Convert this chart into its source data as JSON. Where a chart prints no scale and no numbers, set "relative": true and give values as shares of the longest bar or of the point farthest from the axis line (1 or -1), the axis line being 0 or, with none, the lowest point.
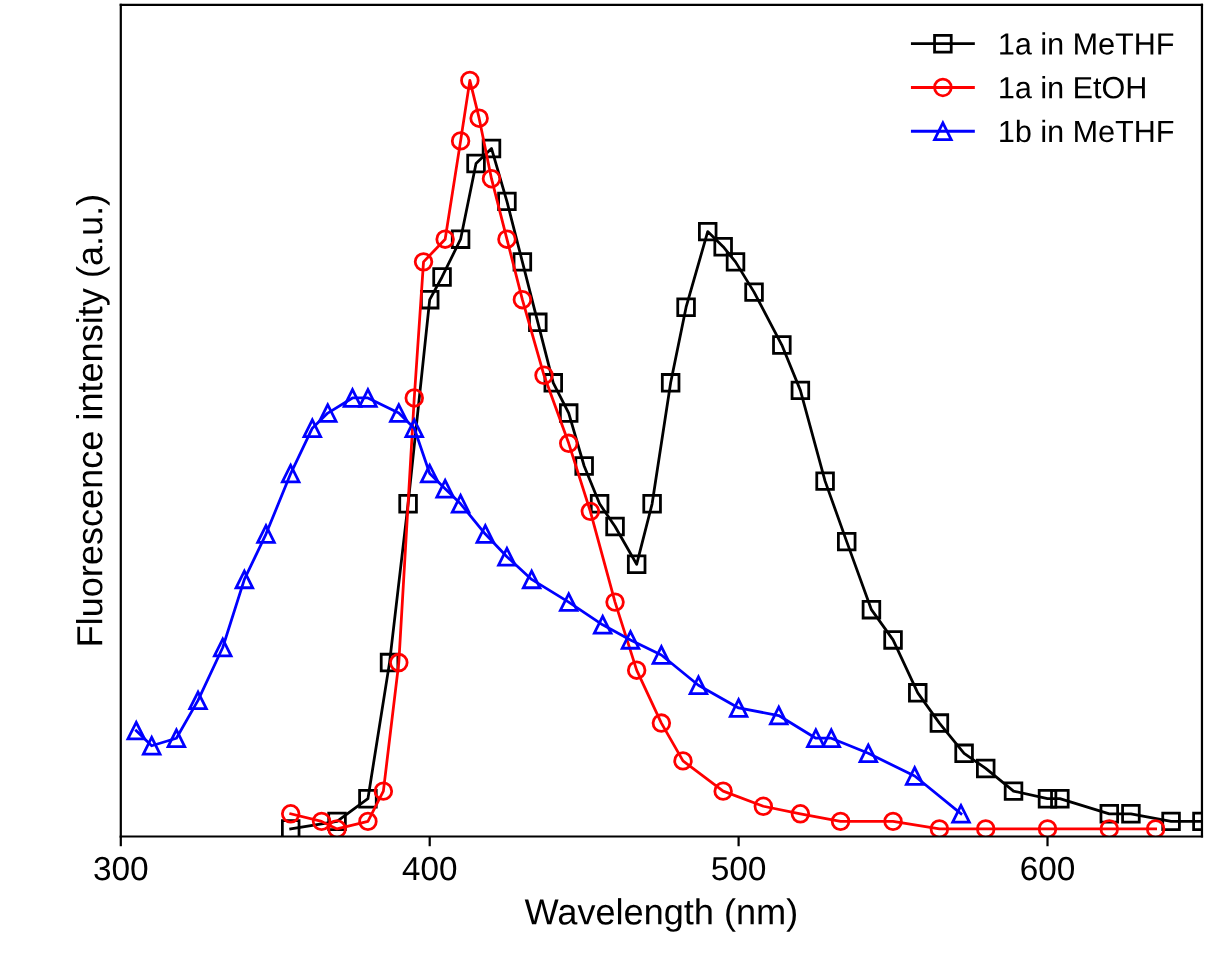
{
  "chart_data": {
    "type": "line",
    "xlabel": "Wavelength (nm)",
    "ylabel": "Fluorescence intensity (a.u.)",
    "relative": true,
    "xlim": [
      300,
      650
    ],
    "xticks": [
      300,
      400,
      500,
      600
    ],
    "legend": "top right",
    "grid": false,
    "series": [
      {
        "name": "1a in MeTHF",
        "color": "#000000",
        "marker": "square",
        "x": [
          355,
          370,
          380,
          387,
          393,
          400,
          404,
          410,
          415,
          420,
          425,
          430,
          435,
          440,
          445,
          450,
          455,
          460,
          467,
          472,
          478,
          483,
          490,
          495,
          499,
          505,
          514,
          520,
          528,
          535,
          543,
          550,
          558,
          565,
          573,
          580,
          589,
          600,
          604,
          620,
          627,
          640,
          650
        ],
        "values": [
          0.01,
          0.02,
          0.05,
          0.23,
          0.44,
          0.71,
          0.74,
          0.79,
          0.89,
          0.91,
          0.84,
          0.76,
          0.68,
          0.6,
          0.56,
          0.49,
          0.44,
          0.41,
          0.36,
          0.44,
          0.6,
          0.7,
          0.8,
          0.78,
          0.76,
          0.72,
          0.65,
          0.59,
          0.47,
          0.39,
          0.3,
          0.26,
          0.19,
          0.15,
          0.11,
          0.09,
          0.06,
          0.05,
          0.05,
          0.03,
          0.03,
          0.02,
          0.02
        ]
      },
      {
        "name": "1a in EtOH",
        "color": "#ff0000",
        "marker": "circle",
        "x": [
          355,
          365,
          370,
          380,
          385,
          390,
          395,
          398,
          405,
          410,
          413,
          416,
          420,
          425,
          430,
          437,
          445,
          452,
          460,
          467,
          475,
          482,
          495,
          508,
          520,
          533,
          550,
          565,
          580,
          600,
          620,
          635
        ],
        "values": [
          0.03,
          0.02,
          0.01,
          0.02,
          0.06,
          0.23,
          0.58,
          0.76,
          0.79,
          0.92,
          1.0,
          0.95,
          0.87,
          0.79,
          0.71,
          0.61,
          0.52,
          0.43,
          0.31,
          0.22,
          0.15,
          0.1,
          0.06,
          0.04,
          0.03,
          0.02,
          0.02,
          0.01,
          0.01,
          0.01,
          0.01,
          0.01
        ]
      },
      {
        "name": "1b in MeTHF",
        "color": "#0000ff",
        "marker": "triangle",
        "x": [
          305,
          310,
          318,
          325,
          333,
          340,
          347,
          355,
          362,
          367,
          375,
          380,
          390,
          395,
          400,
          405,
          410,
          418,
          425,
          433,
          445,
          456,
          465,
          475,
          487,
          500,
          513,
          525,
          530,
          542,
          557,
          572
        ],
        "values": [
          0.14,
          0.12,
          0.13,
          0.18,
          0.25,
          0.34,
          0.4,
          0.48,
          0.54,
          0.56,
          0.58,
          0.58,
          0.56,
          0.54,
          0.48,
          0.46,
          0.44,
          0.4,
          0.37,
          0.34,
          0.31,
          0.28,
          0.26,
          0.24,
          0.2,
          0.17,
          0.16,
          0.13,
          0.13,
          0.11,
          0.08,
          0.03
        ]
      }
    ]
  }
}
